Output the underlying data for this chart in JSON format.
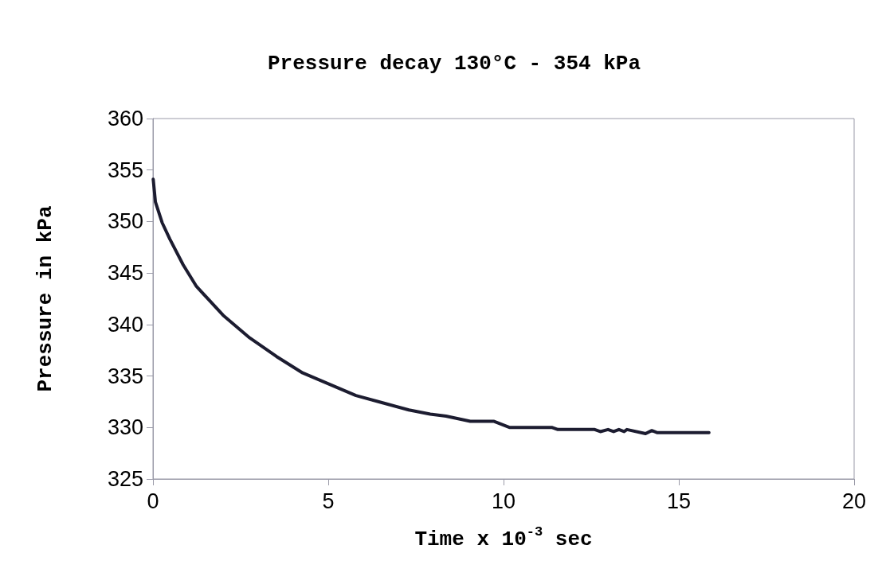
{
  "chart_data": {
    "type": "line",
    "title": "Pressure decay 130°C - 354 kPa",
    "xlabel": "Time x 10$^{-3}$ sec",
    "ylabel": "Pressure in kPa",
    "x": [
      0.007,
      0.07,
      0.26,
      0.48,
      0.86,
      1.24,
      2.0,
      2.76,
      3.52,
      4.27,
      5.03,
      5.79,
      6.55,
      7.3,
      7.91,
      8.36,
      9.05,
      9.73,
      10.18,
      11.39,
      11.55,
      12.6,
      12.76,
      12.98,
      13.14,
      13.29,
      13.44,
      13.52,
      14.05,
      14.23,
      14.39,
      15.86
    ],
    "series": [
      {
        "color": "#1c1c30",
        "values": [
          354.1,
          351.9,
          349.9,
          348.3,
          345.8,
          343.7,
          340.9,
          338.7,
          336.9,
          335.3,
          334.2,
          333.1,
          332.4,
          331.7,
          331.3,
          331.1,
          330.6,
          330.6,
          330.0,
          330.0,
          329.8,
          329.8,
          329.6,
          329.8,
          329.6,
          329.8,
          329.6,
          329.8,
          329.4,
          329.7,
          329.5,
          329.5
        ]
      }
    ],
    "xlim": [
      0,
      20
    ],
    "xticks": [
      0,
      5,
      10,
      15,
      20
    ],
    "ylim": [
      325,
      360
    ],
    "yticks": [
      325,
      330,
      335,
      340,
      345,
      350,
      355,
      360
    ],
    "grid": false,
    "marker": "none",
    "line_style": "solid"
  }
}
